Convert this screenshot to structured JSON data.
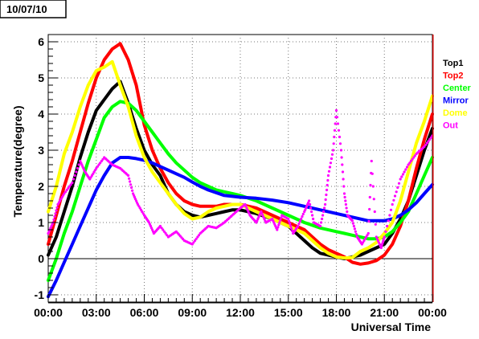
{
  "title": "10/07/10",
  "chart_data": {
    "type": "line",
    "title": "10/07/10",
    "xlabel": "Universal Time",
    "ylabel": "Temperature(degree)",
    "xlim": [
      0,
      24
    ],
    "ylim": [
      -1.2,
      6.2
    ],
    "x_ticks": [
      {
        "value": 0,
        "label": "00:00"
      },
      {
        "value": 3,
        "label": "03:00"
      },
      {
        "value": 6,
        "label": "06:00"
      },
      {
        "value": 9,
        "label": "09:00"
      },
      {
        "value": 12,
        "label": "12:00"
      },
      {
        "value": 15,
        "label": "15:00"
      },
      {
        "value": 18,
        "label": "18:00"
      },
      {
        "value": 21,
        "label": "21:00"
      },
      {
        "value": 24,
        "label": "00:00"
      }
    ],
    "y_ticks": [
      {
        "value": -1,
        "label": "-1"
      },
      {
        "value": 0,
        "label": "0"
      },
      {
        "value": 1,
        "label": "1"
      },
      {
        "value": 2,
        "label": "2"
      },
      {
        "value": 3,
        "label": "3"
      },
      {
        "value": 4,
        "label": "4"
      },
      {
        "value": 5,
        "label": "5"
      },
      {
        "value": 6,
        "label": "6"
      }
    ],
    "grid": true,
    "zero_line": true,
    "legend_position": "right",
    "series": [
      {
        "name": "Top1",
        "color": "#000000",
        "style": "line",
        "x": [
          0,
          0.5,
          1,
          1.5,
          2,
          2.5,
          3,
          3.5,
          4,
          4.5,
          5,
          5.5,
          6,
          6.5,
          7,
          7.5,
          8,
          8.5,
          9,
          9.5,
          10,
          10.5,
          11,
          11.5,
          12,
          13,
          14,
          15,
          16,
          16.5,
          17,
          17.5,
          18,
          18.5,
          19,
          19.5,
          20,
          20.5,
          21,
          21.5,
          22,
          22.5,
          23,
          23.5,
          24
        ],
        "y": [
          0.1,
          0.6,
          1.3,
          2.0,
          2.8,
          3.5,
          4.1,
          4.4,
          4.7,
          4.9,
          4.3,
          3.6,
          3.0,
          2.6,
          2.3,
          1.8,
          1.5,
          1.3,
          1.2,
          1.15,
          1.2,
          1.25,
          1.3,
          1.35,
          1.35,
          1.25,
          1.1,
          0.9,
          0.5,
          0.3,
          0.15,
          0.1,
          0.05,
          0.0,
          0.05,
          0.1,
          0.2,
          0.3,
          0.4,
          0.7,
          1.1,
          1.6,
          2.3,
          3.0,
          3.6
        ]
      },
      {
        "name": "Top2",
        "color": "#ff0000",
        "style": "line",
        "x": [
          0,
          0.5,
          1,
          1.5,
          2,
          2.5,
          3,
          3.5,
          4,
          4.5,
          5,
          5.5,
          6,
          6.5,
          7,
          7.5,
          8,
          8.5,
          9,
          9.5,
          10,
          10.5,
          11,
          11.5,
          12,
          13,
          14,
          15,
          16,
          16.5,
          17,
          17.5,
          18,
          18.5,
          19,
          19.5,
          20,
          20.5,
          21,
          21.5,
          22,
          22.5,
          23,
          23.5,
          24
        ],
        "y": [
          0.4,
          1.2,
          2.0,
          2.7,
          3.5,
          4.3,
          5.0,
          5.5,
          5.8,
          5.95,
          5.5,
          4.8,
          3.7,
          3.0,
          2.5,
          2.1,
          1.8,
          1.6,
          1.5,
          1.45,
          1.45,
          1.45,
          1.5,
          1.5,
          1.5,
          1.4,
          1.2,
          1.0,
          0.8,
          0.6,
          0.4,
          0.25,
          0.15,
          0.05,
          -0.1,
          -0.15,
          -0.12,
          -0.05,
          0.1,
          0.4,
          0.9,
          1.6,
          2.5,
          3.3,
          4.0
        ]
      },
      {
        "name": "Center",
        "color": "#00ff00",
        "style": "line",
        "x": [
          0,
          0.5,
          1,
          1.5,
          2,
          2.5,
          3,
          3.5,
          4,
          4.5,
          5,
          5.5,
          6,
          6.5,
          7,
          7.5,
          8,
          8.5,
          9,
          9.5,
          10,
          10.5,
          11,
          11.5,
          12,
          13,
          14,
          15,
          16,
          17,
          18,
          18.5,
          19,
          19.5,
          20,
          20.5,
          21,
          21.5,
          22,
          22.5,
          23,
          23.5,
          24
        ],
        "y": [
          -0.6,
          0.0,
          0.7,
          1.3,
          2.0,
          2.7,
          3.3,
          3.9,
          4.2,
          4.35,
          4.3,
          4.1,
          3.8,
          3.5,
          3.2,
          2.9,
          2.65,
          2.45,
          2.25,
          2.1,
          2.0,
          1.9,
          1.85,
          1.8,
          1.75,
          1.6,
          1.4,
          1.2,
          1.0,
          0.85,
          0.75,
          0.7,
          0.65,
          0.6,
          0.55,
          0.55,
          0.6,
          0.75,
          1.0,
          1.3,
          1.8,
          2.3,
          2.8
        ]
      },
      {
        "name": "Mirror",
        "color": "#0000ff",
        "style": "line",
        "x": [
          0,
          0.5,
          1,
          1.5,
          2,
          2.5,
          3,
          3.5,
          4,
          4.5,
          5,
          5.5,
          6,
          6.5,
          7,
          7.5,
          8,
          8.5,
          9,
          9.5,
          10,
          11,
          12,
          13,
          14,
          15,
          16,
          17,
          18,
          19,
          20,
          20.5,
          21,
          21.5,
          22,
          22.5,
          23,
          23.5,
          24
        ],
        "y": [
          -1.05,
          -0.6,
          -0.1,
          0.4,
          0.9,
          1.4,
          1.9,
          2.3,
          2.65,
          2.8,
          2.8,
          2.77,
          2.72,
          2.65,
          2.55,
          2.45,
          2.35,
          2.25,
          2.12,
          2.0,
          1.9,
          1.75,
          1.7,
          1.67,
          1.62,
          1.55,
          1.45,
          1.35,
          1.25,
          1.15,
          1.05,
          1.05,
          1.05,
          1.1,
          1.2,
          1.35,
          1.55,
          1.8,
          2.05
        ]
      },
      {
        "name": "Dome",
        "color": "#ffff00",
        "style": "line",
        "x": [
          0,
          0.5,
          1,
          1.5,
          2,
          2.5,
          3,
          3.5,
          4,
          4.5,
          5,
          5.5,
          6,
          6.5,
          7,
          7.5,
          8,
          8.5,
          9,
          9.5,
          10,
          10.5,
          11,
          11.5,
          12,
          13,
          14,
          15,
          16,
          17,
          17.5,
          18,
          18.5,
          19,
          19.5,
          20,
          20.5,
          21,
          21.5,
          22,
          22.5,
          23,
          23.5,
          24
        ],
        "y": [
          1.3,
          2.0,
          2.9,
          3.5,
          4.2,
          4.8,
          5.2,
          5.3,
          5.45,
          4.8,
          4.2,
          3.4,
          2.8,
          2.4,
          2.1,
          1.8,
          1.5,
          1.25,
          1.1,
          1.15,
          1.3,
          1.4,
          1.45,
          1.5,
          1.5,
          1.3,
          1.1,
          0.9,
          0.7,
          0.3,
          0.15,
          0.05,
          0.02,
          0.03,
          0.2,
          0.3,
          0.45,
          0.7,
          1.0,
          1.6,
          2.4,
          3.2,
          3.8,
          4.5
        ]
      },
      {
        "name": "Out",
        "color": "#ff00ff",
        "style": "points",
        "x": [
          0,
          0.3,
          0.6,
          1,
          1.5,
          2,
          2.3,
          2.6,
          3,
          3.5,
          4,
          4.5,
          5,
          5.3,
          5.6,
          6,
          6.3,
          6.6,
          7,
          7.5,
          8,
          8.5,
          9,
          9.5,
          10,
          10.5,
          11,
          11.5,
          12,
          12.3,
          12.6,
          13,
          13.3,
          13.6,
          14,
          14.3,
          14.6,
          15,
          15.3,
          15.6,
          16,
          16.3,
          16.6,
          17,
          17.3,
          17.5,
          17.8,
          18,
          18.3,
          18.5,
          18.7,
          19,
          19.3,
          19.6,
          20,
          20.2,
          20.5,
          20.8,
          21,
          21.5,
          22,
          22.5,
          23,
          23.5,
          24
        ],
        "y": [
          0.7,
          1.0,
          1.5,
          1.8,
          2.1,
          2.7,
          2.4,
          2.2,
          2.5,
          2.8,
          2.6,
          2.5,
          2.3,
          1.8,
          1.5,
          1.2,
          1.0,
          0.7,
          0.9,
          0.6,
          0.75,
          0.5,
          0.4,
          0.7,
          0.9,
          0.85,
          1.0,
          1.2,
          1.4,
          1.5,
          1.2,
          1.0,
          1.3,
          1.0,
          1.1,
          0.8,
          1.2,
          1.1,
          0.7,
          0.9,
          1.3,
          1.6,
          1.0,
          0.9,
          1.5,
          2.3,
          3.0,
          4.1,
          3.0,
          1.8,
          1.2,
          1.05,
          0.6,
          0.4,
          0.7,
          2.7,
          0.6,
          0.3,
          0.6,
          1.5,
          2.2,
          2.6,
          2.9,
          3.1,
          3.4
        ]
      }
    ]
  }
}
